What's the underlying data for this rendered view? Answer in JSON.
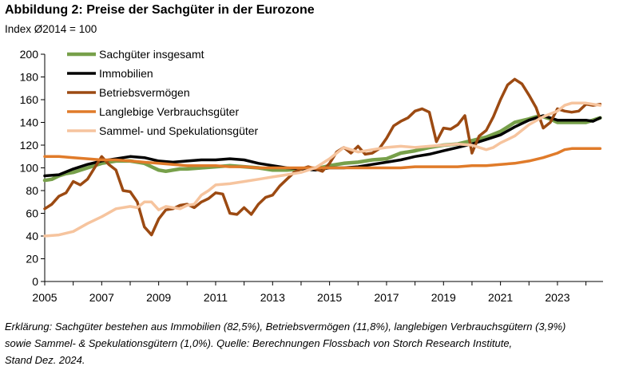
{
  "figure": {
    "title": "Abbildung 2: Preise der Sachgüter in der Eurozone",
    "subtitle": "Index Ø2014 = 100",
    "footnote": [
      "Erklärung: Sachgüter bestehen aus Immobilien (82,5%), Betriebsvermögen (11,8%), langlebigen Verbrauchsgütern (3,9%)",
      "sowie Sammel- & Spekulationsgütern (1,0%). Quelle: Berechnungen Flossbach von Storch Research Institute,",
      "Stand Dez. 2024."
    ]
  },
  "chart_data": {
    "type": "line",
    "title": "Abbildung 2: Preise der Sachgüter in der Eurozone",
    "ylabel": "Index Ø2014 = 100",
    "xlabel": "",
    "xlim": [
      2005,
      2024.6
    ],
    "ylim": [
      0,
      200
    ],
    "y_ticks": [
      0,
      20,
      40,
      60,
      80,
      100,
      120,
      140,
      160,
      180,
      200
    ],
    "x_ticks": [
      2005,
      2007,
      2009,
      2011,
      2013,
      2015,
      2017,
      2019,
      2021,
      2023
    ],
    "x_tick_labels": [
      "2005",
      "2007",
      "2009",
      "2011",
      "2013",
      "2015",
      "2017",
      "2019",
      "2021",
      "2023"
    ],
    "grid": false,
    "legend_position": "top-left",
    "series": [
      {
        "name": "Sachgüter insgesamt",
        "color": "#77a04a",
        "width": 4.5,
        "x": [
          2005,
          2005.25,
          2005.5,
          2005.75,
          2006,
          2006.5,
          2007,
          2007.5,
          2008,
          2008.5,
          2008.75,
          2009,
          2009.25,
          2009.5,
          2009.75,
          2010,
          2010.5,
          2011,
          2011.5,
          2012,
          2012.5,
          2013,
          2013.5,
          2014,
          2014.5,
          2015,
          2015.5,
          2016,
          2016.5,
          2017,
          2017.5,
          2018,
          2018.5,
          2019,
          2019.5,
          2020,
          2020.5,
          2021,
          2021.5,
          2022,
          2022.25,
          2022.5,
          2022.75,
          2023,
          2023.5,
          2024,
          2024.25,
          2024.5
        ],
        "values": [
          89,
          90,
          93,
          95,
          96,
          100,
          104,
          106,
          106,
          104,
          101,
          98,
          97,
          98,
          99,
          99,
          100,
          101,
          102,
          101,
          100,
          98,
          98,
          99,
          99,
          102,
          104,
          105,
          107,
          108,
          113,
          115,
          118,
          120,
          121,
          124,
          127,
          132,
          140,
          143,
          145,
          145,
          143,
          140,
          140,
          140,
          142,
          144
        ]
      },
      {
        "name": "Immobilien",
        "color": "#000000",
        "width": 3.5,
        "x": [
          2005,
          2005.5,
          2006,
          2006.5,
          2007,
          2007.5,
          2008,
          2008.5,
          2009,
          2009.5,
          2010,
          2010.5,
          2011,
          2011.5,
          2012,
          2012.5,
          2013,
          2013.5,
          2014,
          2014.5,
          2015,
          2015.5,
          2016,
          2016.5,
          2017,
          2017.5,
          2018,
          2018.5,
          2019,
          2019.5,
          2020,
          2020.5,
          2021,
          2021.5,
          2022,
          2022.5,
          2023,
          2023.5,
          2024,
          2024.25,
          2024.5
        ],
        "values": [
          93,
          94,
          99,
          103,
          106,
          108,
          110,
          109,
          106,
          105,
          106,
          107,
          107,
          108,
          107,
          104,
          102,
          100,
          99,
          98,
          100,
          100,
          101,
          103,
          105,
          107,
          110,
          112,
          115,
          118,
          121,
          125,
          129,
          136,
          142,
          146,
          142,
          142,
          142,
          141,
          144
        ]
      },
      {
        "name": "Betriebsvermögen",
        "color": "#9c4a12",
        "width": 3.5,
        "x": [
          2005,
          2005.25,
          2005.5,
          2005.75,
          2006,
          2006.25,
          2006.5,
          2006.75,
          2007,
          2007.25,
          2007.5,
          2007.75,
          2008,
          2008.25,
          2008.5,
          2008.75,
          2009,
          2009.25,
          2009.5,
          2009.75,
          2010,
          2010.25,
          2010.5,
          2010.75,
          2011,
          2011.25,
          2011.5,
          2011.75,
          2012,
          2012.25,
          2012.5,
          2012.75,
          2013,
          2013.25,
          2013.5,
          2013.75,
          2014,
          2014.25,
          2014.5,
          2014.75,
          2015,
          2015.25,
          2015.5,
          2015.75,
          2016,
          2016.25,
          2016.5,
          2016.75,
          2017,
          2017.25,
          2017.5,
          2017.75,
          2018,
          2018.25,
          2018.5,
          2018.75,
          2019,
          2019.25,
          2019.5,
          2019.75,
          2020,
          2020.25,
          2020.5,
          2020.75,
          2021,
          2021.25,
          2021.5,
          2021.75,
          2022,
          2022.25,
          2022.5,
          2022.75,
          2023,
          2023.25,
          2023.5,
          2023.75,
          2024,
          2024.25,
          2024.5
        ],
        "values": [
          64,
          68,
          75,
          78,
          88,
          85,
          90,
          100,
          110,
          103,
          98,
          80,
          79,
          70,
          48,
          41,
          55,
          63,
          64,
          67,
          68,
          65,
          70,
          73,
          78,
          77,
          60,
          59,
          65,
          59,
          68,
          74,
          76,
          84,
          90,
          96,
          99,
          101,
          99,
          97,
          104,
          114,
          118,
          113,
          119,
          112,
          113,
          117,
          126,
          137,
          141,
          144,
          150,
          152,
          149,
          123,
          135,
          134,
          138,
          146,
          113,
          128,
          133,
          145,
          160,
          173,
          178,
          174,
          164,
          153,
          135,
          140,
          152,
          150,
          149,
          150,
          156,
          155,
          156
        ]
      },
      {
        "name": "Langlebige Verbrauchsgüter",
        "color": "#e07b2a",
        "width": 3.5,
        "x": [
          2005,
          2005.5,
          2006,
          2006.5,
          2007,
          2007.5,
          2008,
          2008.5,
          2009,
          2009.5,
          2010,
          2010.5,
          2011,
          2011.5,
          2012,
          2012.5,
          2013,
          2013.5,
          2014,
          2014.5,
          2015,
          2015.5,
          2016,
          2016.5,
          2017,
          2017.5,
          2018,
          2018.5,
          2019,
          2019.5,
          2020,
          2020.5,
          2021,
          2021.5,
          2022,
          2022.5,
          2023,
          2023.25,
          2023.5,
          2024,
          2024.5
        ],
        "values": [
          110,
          110,
          109,
          108,
          107,
          107,
          106,
          105,
          104,
          103,
          102,
          102,
          102,
          101,
          101,
          100,
          100,
          100,
          100,
          100,
          100,
          100,
          100,
          100,
          100,
          100,
          101,
          101,
          101,
          101,
          102,
          102,
          103,
          104,
          106,
          109,
          113,
          116,
          117,
          117,
          117
        ]
      },
      {
        "name": "Sammel- und Spekulationsgüter",
        "color": "#f6c49e",
        "width": 3.5,
        "x": [
          2005,
          2005.5,
          2006,
          2006.5,
          2007,
          2007.5,
          2008,
          2008.25,
          2008.5,
          2008.75,
          2009,
          2009.25,
          2009.5,
          2009.75,
          2010,
          2010.25,
          2010.5,
          2010.75,
          2011,
          2011.5,
          2012,
          2012.5,
          2013,
          2013.5,
          2014,
          2014.5,
          2015,
          2015.25,
          2015.5,
          2015.75,
          2016,
          2016.5,
          2017,
          2017.5,
          2018,
          2018.5,
          2019,
          2019.5,
          2020,
          2020.25,
          2020.5,
          2020.75,
          2021,
          2021.5,
          2022,
          2022.5,
          2023,
          2023.25,
          2023.5,
          2024,
          2024.25,
          2024.5
        ],
        "values": [
          40,
          41,
          44,
          51,
          57,
          64,
          66,
          65,
          70,
          70,
          63,
          66,
          65,
          64,
          67,
          68,
          76,
          80,
          85,
          86,
          88,
          90,
          92,
          94,
          96,
          100,
          108,
          113,
          118,
          116,
          114,
          116,
          118,
          119,
          118,
          119,
          120,
          121,
          120,
          118,
          116,
          118,
          122,
          128,
          138,
          145,
          150,
          155,
          157,
          157,
          156,
          155
        ]
      }
    ]
  }
}
